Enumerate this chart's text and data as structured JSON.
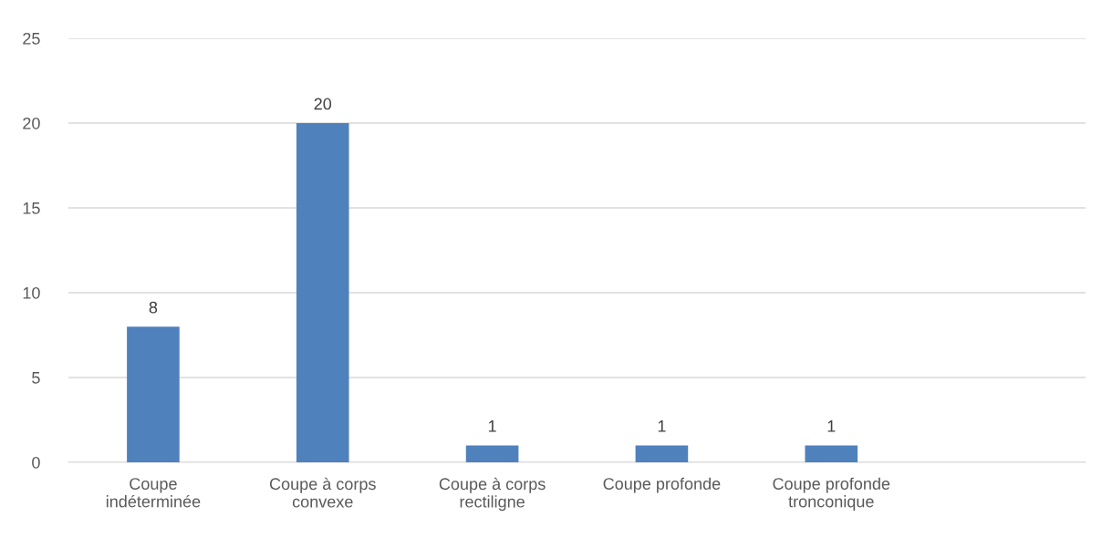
{
  "chart_data": {
    "type": "bar",
    "categories": [
      "Coupe\nindéterminée",
      "Coupe à corps\nconvexe",
      "Coupe à corps\nrectiligne",
      "Coupe profonde",
      "Coupe profonde\ntronconique",
      null
    ],
    "values": [
      8,
      20,
      1,
      1,
      1,
      null
    ],
    "color": "#4f81bd",
    "ylim": [
      0,
      25
    ],
    "yticks": [
      0,
      5,
      10,
      15,
      20,
      25
    ],
    "grid": "y",
    "data_labels": true
  }
}
